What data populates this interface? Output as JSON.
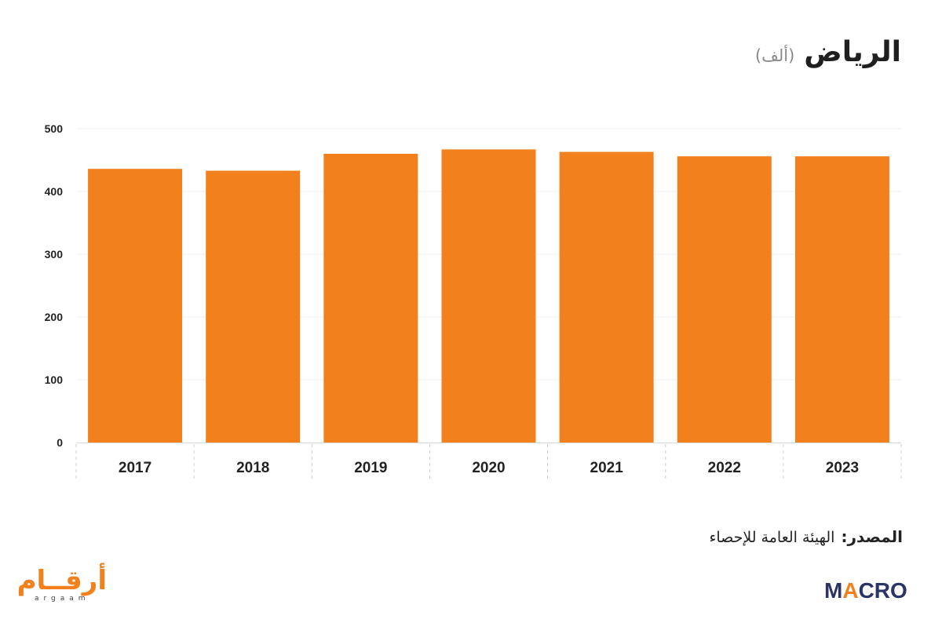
{
  "header": {
    "title": "الرياض",
    "unit": "(ألف)"
  },
  "source": {
    "label": "المصدر:",
    "value": "الهيئة العامة للإحصاء"
  },
  "logos": {
    "argaam_ar": "أرقــام",
    "argaam_en": "argaam",
    "macro_a": "M",
    "macro_slash": "A",
    "macro_b": "CRO"
  },
  "colors": {
    "bar": "#f2811d",
    "grid": "#eeeeee",
    "axis_text": "#222222"
  },
  "chart_data": {
    "type": "bar",
    "categories": [
      "2017",
      "2018",
      "2019",
      "2020",
      "2021",
      "2022",
      "2023"
    ],
    "values": [
      436,
      433,
      460,
      467,
      463,
      456,
      456
    ],
    "ylim": [
      0,
      500
    ],
    "yticks": [
      0,
      100,
      200,
      300,
      400,
      500
    ],
    "grid": true,
    "legend": "none"
  }
}
